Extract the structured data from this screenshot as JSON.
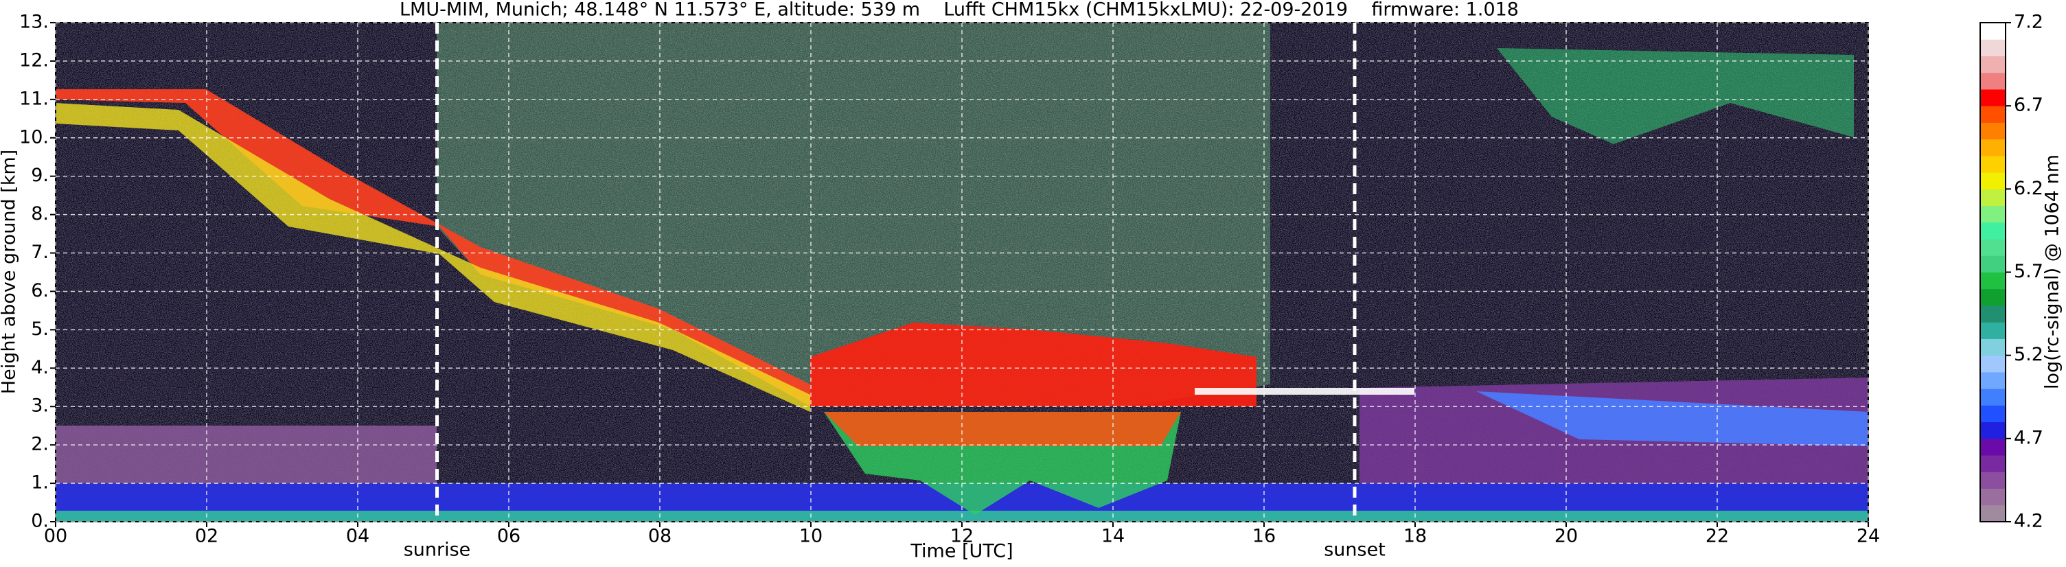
{
  "chart_data": {
    "type": "heatmap",
    "title": "LMU-MIM, Munich; 48.148° N 11.573° E, altitude: 539 m    Lufft CHM15kx (CHM15kxLMU): 22-09-2019    firmware: 1.018",
    "xlabel": "Time [UTC]",
    "ylabel": "Height above ground [km]",
    "colorbar_label": "log(rc-signal) @ 1064 nm",
    "xlim": [
      0,
      24
    ],
    "xticks": [
      {
        "value": 0,
        "label": "00"
      },
      {
        "value": 2,
        "label": "02"
      },
      {
        "value": 4,
        "label": "04"
      },
      {
        "value": 6,
        "label": "06"
      },
      {
        "value": 8,
        "label": "08"
      },
      10,
      12,
      14,
      16,
      18,
      20,
      22,
      24
    ],
    "ylim": [
      0,
      13
    ],
    "yticks": [
      {
        "value": 0,
        "label": "0."
      },
      {
        "value": 1,
        "label": "1."
      },
      {
        "value": 2,
        "label": "2."
      },
      {
        "value": 3,
        "label": "3."
      },
      {
        "value": 4,
        "label": "4."
      },
      {
        "value": 5,
        "label": "5."
      },
      {
        "value": 6,
        "label": "6."
      },
      {
        "value": 7,
        "label": "7."
      },
      {
        "value": 8,
        "label": "8."
      },
      {
        "value": 9,
        "label": "9."
      },
      {
        "value": 10,
        "label": "10."
      },
      {
        "value": 11,
        "label": "11."
      },
      {
        "value": 12,
        "label": "12."
      },
      {
        "value": 13,
        "label": "13."
      }
    ],
    "clim": [
      4.2,
      7.2
    ],
    "cticks": [
      4.2,
      4.7,
      5.2,
      5.7,
      6.2,
      6.7,
      7.2
    ],
    "colormap": [
      "#a08aa0",
      "#9a6fa0",
      "#8c4fa0",
      "#7a2aa0",
      "#6a0aa8",
      "#2020e0",
      "#2050ff",
      "#4080ff",
      "#70a8ff",
      "#a0c8ff",
      "#80d0e0",
      "#30b0a0",
      "#209070",
      "#10a030",
      "#20c040",
      "#40d080",
      "#50e090",
      "#40f0a0",
      "#80f080",
      "#c0f040",
      "#f0f000",
      "#ffd000",
      "#ffb000",
      "#ff8000",
      "#ff5000",
      "#ff0000",
      "#f08080",
      "#f0b0b0",
      "#f0d8d8",
      "#ffffff"
    ],
    "grid": true,
    "annotations": [
      {
        "x": 5.05,
        "label": "sunrise"
      },
      {
        "x": 17.2,
        "label": "sunset"
      }
    ]
  }
}
